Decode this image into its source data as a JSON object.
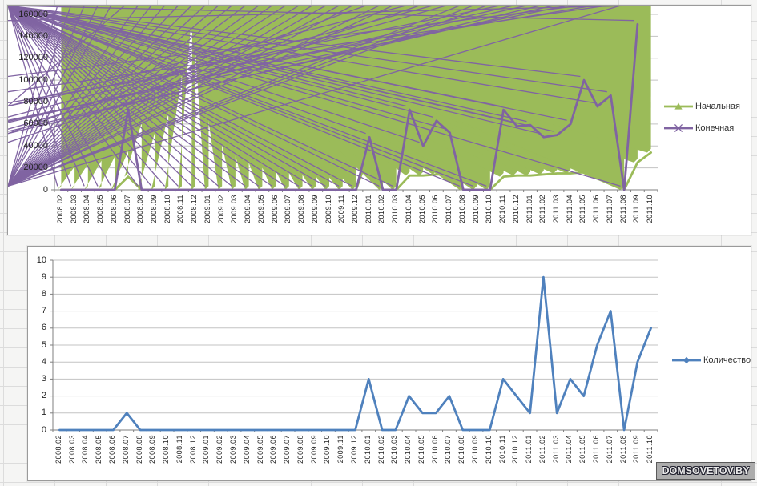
{
  "watermark": {
    "text": "DOMSOVETOV.BY"
  },
  "chart_data": [
    {
      "type": "line",
      "title": "",
      "xlabel": "",
      "ylabel": "",
      "grid": true,
      "legend_position": "right",
      "ylim": [
        0,
        160000
      ],
      "ytick_step": 20000,
      "yticks": [
        "0",
        "20000",
        "40000",
        "60000",
        "80000",
        "100000",
        "120000",
        "140000",
        "160000"
      ],
      "categories": [
        "2008.02",
        "2008.03",
        "2008.04",
        "2008.05",
        "2008.06",
        "2008.07",
        "2008.08",
        "2008.09",
        "2008.10",
        "2008.11",
        "2008.12",
        "2009.01",
        "2009.02",
        "2009.03",
        "2009.04",
        "2009.05",
        "2009.06",
        "2009.07",
        "2009.08",
        "2009.09",
        "2009.10",
        "2009.11",
        "2009.12",
        "2010.01",
        "2010.02",
        "2010.03",
        "2010.04",
        "2010.05",
        "2010.06",
        "2010.07",
        "2010.08",
        "2010.09",
        "2010.10",
        "2010.11",
        "2010.12",
        "2011.01",
        "2011.02",
        "2011.03",
        "2011.04",
        "2011.05",
        "2011.06",
        "2011.07",
        "2011.08",
        "2011.09",
        "2011.10"
      ],
      "series": [
        {
          "name": "Начальная",
          "color": "#9BBB59",
          "marker": "triangle",
          "values": [
            0,
            0,
            0,
            0,
            0,
            12000,
            0,
            0,
            0,
            0,
            0,
            0,
            0,
            0,
            0,
            0,
            0,
            0,
            0,
            0,
            0,
            0,
            0,
            35000,
            0,
            0,
            13000,
            13000,
            14000,
            14000,
            0,
            0,
            0,
            12000,
            13000,
            13000,
            14000,
            15000,
            15000,
            16000,
            18000,
            34000,
            0,
            25000,
            34000
          ]
        },
        {
          "name": "Конечная",
          "color": "#8064A2",
          "marker": "x",
          "values": [
            0,
            0,
            0,
            0,
            0,
            73000,
            0,
            0,
            0,
            0,
            0,
            0,
            0,
            0,
            0,
            0,
            0,
            0,
            0,
            0,
            0,
            0,
            0,
            48000,
            0,
            0,
            73000,
            40000,
            63000,
            52000,
            0,
            0,
            0,
            73000,
            58000,
            59000,
            48000,
            50000,
            60000,
            100000,
            76000,
            86000,
            0,
            151000,
            null
          ]
        }
      ]
    },
    {
      "type": "line",
      "title": "",
      "xlabel": "",
      "ylabel": "",
      "grid": true,
      "legend_position": "right",
      "ylim": [
        0,
        10
      ],
      "ytick_step": 1,
      "yticks": [
        "0",
        "1",
        "2",
        "3",
        "4",
        "5",
        "6",
        "7",
        "8",
        "9",
        "10"
      ],
      "categories": [
        "2008.02",
        "2008.03",
        "2008.04",
        "2008.05",
        "2008.06",
        "2008.07",
        "2008.08",
        "2008.09",
        "2008.10",
        "2008.11",
        "2008.12",
        "2009.01",
        "2009.02",
        "2009.03",
        "2009.04",
        "2009.05",
        "2009.06",
        "2009.07",
        "2009.08",
        "2009.09",
        "2009.10",
        "2009.11",
        "2009.12",
        "2010.01",
        "2010.02",
        "2010.03",
        "2010.04",
        "2010.05",
        "2010.06",
        "2010.07",
        "2010.08",
        "2010.09",
        "2010.10",
        "2010.11",
        "2010.12",
        "2011.01",
        "2011.02",
        "2011.03",
        "2011.04",
        "2011.05",
        "2011.06",
        "2011.07",
        "2011.08",
        "2011.09",
        "2011.10"
      ],
      "series": [
        {
          "name": "Количество",
          "color": "#4F81BD",
          "marker": "diamond",
          "values": [
            0,
            0,
            0,
            0,
            0,
            1,
            0,
            0,
            0,
            0,
            0,
            0,
            0,
            0,
            0,
            0,
            0,
            0,
            0,
            0,
            0,
            0,
            0,
            3,
            0,
            0,
            2,
            1,
            1,
            2,
            0,
            0,
            0,
            3,
            2,
            1,
            9,
            1,
            3,
            2,
            5,
            7,
            0,
            4,
            6
          ]
        }
      ]
    }
  ]
}
